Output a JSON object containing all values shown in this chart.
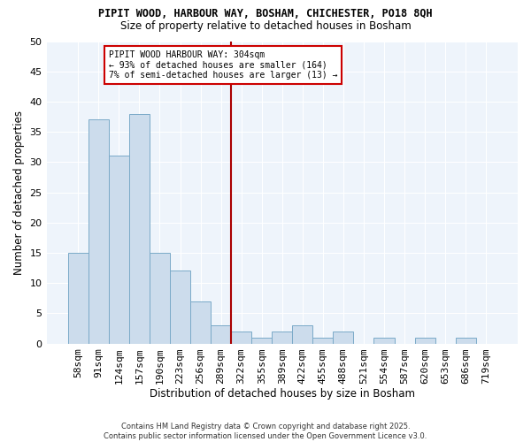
{
  "title1": "PIPIT WOOD, HARBOUR WAY, BOSHAM, CHICHESTER, PO18 8QH",
  "title2": "Size of property relative to detached houses in Bosham",
  "xlabel": "Distribution of detached houses by size in Bosham",
  "ylabel": "Number of detached properties",
  "categories": [
    "58sqm",
    "91sqm",
    "124sqm",
    "157sqm",
    "190sqm",
    "223sqm",
    "256sqm",
    "289sqm",
    "322sqm",
    "355sqm",
    "389sqm",
    "422sqm",
    "455sqm",
    "488sqm",
    "521sqm",
    "554sqm",
    "587sqm",
    "620sqm",
    "653sqm",
    "686sqm",
    "719sqm"
  ],
  "values": [
    15,
    37,
    31,
    38,
    15,
    12,
    7,
    3,
    2,
    1,
    2,
    3,
    1,
    2,
    0,
    1,
    0,
    1,
    0,
    1,
    0
  ],
  "bar_color": "#ccdcec",
  "bar_edge_color": "#7aaac8",
  "vline_color": "#aa0000",
  "ylim": [
    0,
    50
  ],
  "yticks": [
    0,
    5,
    10,
    15,
    20,
    25,
    30,
    35,
    40,
    45,
    50
  ],
  "annotation_text": "PIPIT WOOD HARBOUR WAY: 304sqm\n← 93% of detached houses are smaller (164)\n7% of semi-detached houses are larger (13) →",
  "annotation_box_color": "#cc0000",
  "footer": "Contains HM Land Registry data © Crown copyright and database right 2025.\nContains public sector information licensed under the Open Government Licence v3.0.",
  "background_color": "#eef4fb",
  "plot_bg_color": "#eef4fb",
  "fig_bg_color": "#ffffff"
}
